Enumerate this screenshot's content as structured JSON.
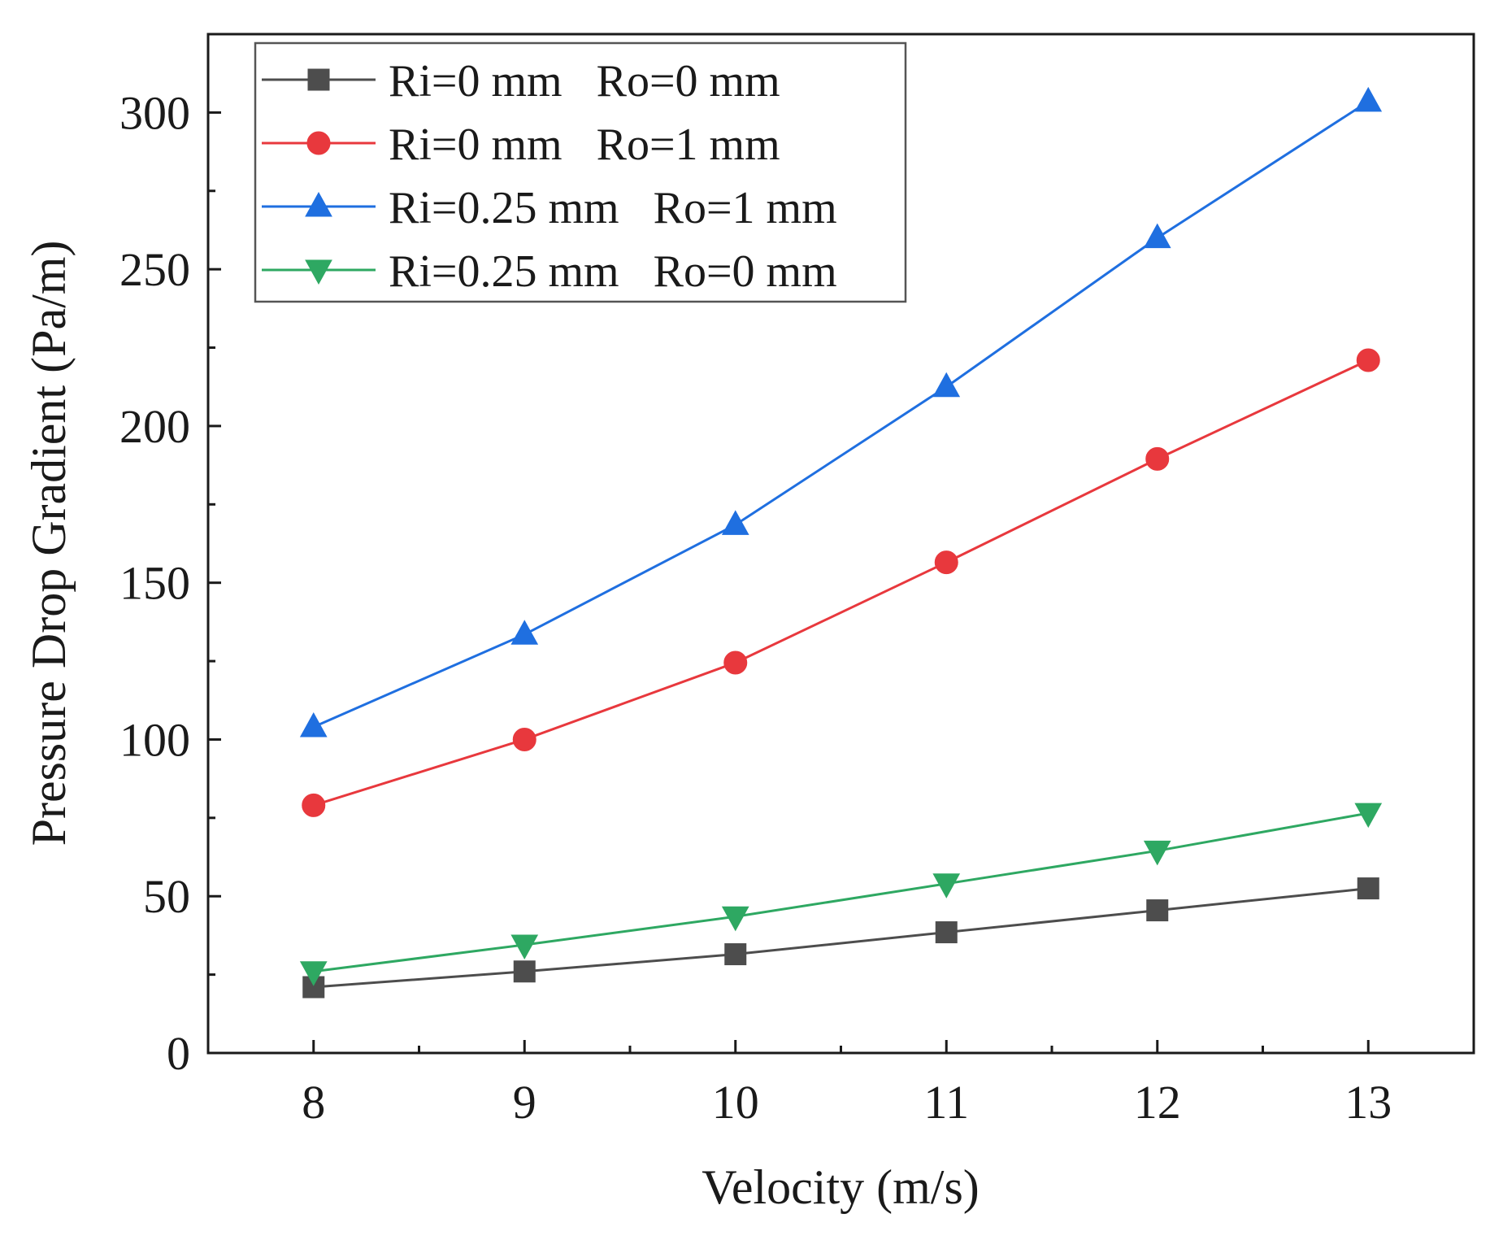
{
  "chart_data": {
    "type": "line",
    "title": "",
    "xlabel": "Velocity (m/s)",
    "ylabel": "Pressure Drop Gradient (Pa/m)",
    "xlim": [
      7.5,
      13.5
    ],
    "ylim": [
      0,
      325
    ],
    "x_ticks": [
      8,
      9,
      10,
      11,
      12,
      13
    ],
    "y_ticks": [
      0,
      50,
      100,
      150,
      200,
      250,
      300
    ],
    "x": [
      8,
      9,
      10,
      11,
      12,
      13
    ],
    "grid": false,
    "legend_position": "top-left",
    "series": [
      {
        "name": "Ri=0 mm   Ro=0 mm",
        "marker": "square",
        "color": "#4d4d4d",
        "values": [
          21,
          26,
          31.5,
          38.5,
          45.5,
          52.5
        ]
      },
      {
        "name": "Ri=0 mm   Ro=1 mm",
        "marker": "circle",
        "color": "#e8383d",
        "values": [
          79,
          100,
          124.5,
          156.5,
          189.5,
          221
        ]
      },
      {
        "name": "Ri=0.25 mm   Ro=1 mm",
        "marker": "triangle-up",
        "color": "#1f6fe0",
        "values": [
          104,
          133.5,
          168.5,
          212.5,
          260,
          303.5
        ]
      },
      {
        "name": "Ri=0.25 mm   Ro=0 mm",
        "marker": "triangle-down",
        "color": "#2ea862",
        "values": [
          26,
          34.5,
          43.5,
          54,
          64.5,
          76.5
        ]
      }
    ]
  }
}
